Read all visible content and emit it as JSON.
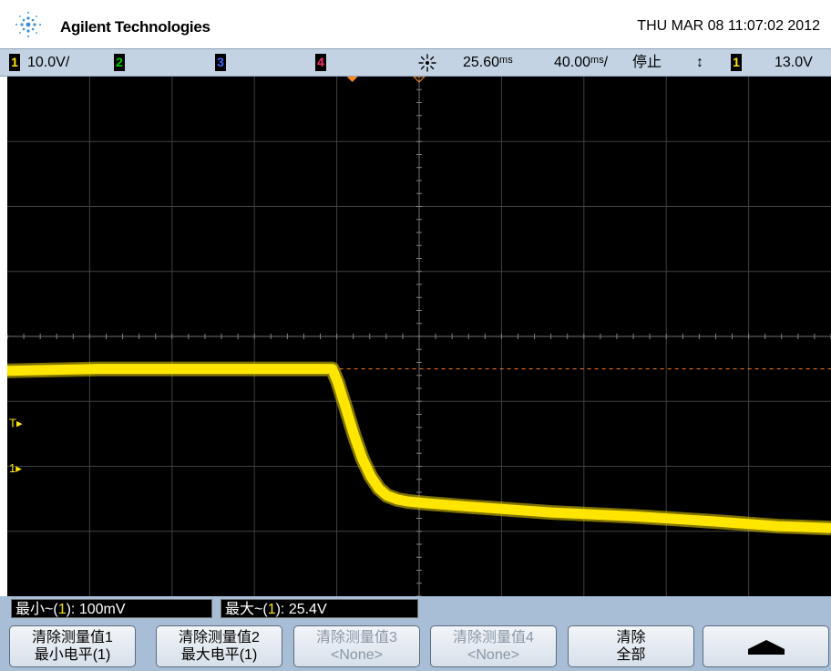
{
  "header": {
    "brand": "Agilent Technologies",
    "datetime": "THU MAR 08 11:07:02 2012",
    "logo_icon": "agilent-spark-icon"
  },
  "status": {
    "ch1_num": "1",
    "ch1_scale": "10.0V/",
    "ch2_num": "2",
    "ch3_num": "3",
    "ch4_num": "4",
    "trigger_icon": "trigger-sun-icon",
    "delay": "25.60ᵐˢ",
    "timebase": "40.00ᵐˢ/",
    "run_state": "停止",
    "trigger_mode_icon": "trigger-edge-icon",
    "trig_src": "1",
    "trig_level": "13.0V",
    "colors": {
      "ch1": "#ffe600",
      "ch2": "#00d000",
      "ch3": "#3a66ff",
      "ch4": "#ff2e6e"
    }
  },
  "screen": {
    "trig_marker_label": "T",
    "ch1_ground_label": "1",
    "trace_color": "#ffe600",
    "trigger_level_line_color": "#ff7a1a"
  },
  "chart_data": {
    "type": "line",
    "title": "",
    "xlabel": "",
    "ylabel": "",
    "x_unit": "ms",
    "y_unit": "V",
    "xlim": [
      -174.4,
      225.6
    ],
    "ylim": [
      -10,
      70
    ],
    "grid": true,
    "series": [
      {
        "x": [
          -174.4,
          -130,
          -90,
          -50,
          -16.6,
          -14,
          -10,
          -6,
          -2,
          2,
          6,
          10,
          15,
          20,
          30,
          50,
          90,
          130,
          170,
          200,
          225.6
        ],
        "y": [
          24.7,
          25.0,
          25.0,
          25.0,
          25.0,
          23.0,
          19.0,
          14.8,
          11.2,
          8.5,
          6.6,
          5.5,
          4.9,
          4.6,
          4.3,
          3.8,
          2.9,
          2.3,
          1.5,
          0.8,
          0.5
        ]
      }
    ]
  },
  "measurements": {
    "min_prefix": "最小~(",
    "min_ch": "1",
    "min_suffix": "): 100mV",
    "max_prefix": "最大~(",
    "max_ch": "1",
    "max_suffix": "): 25.4V"
  },
  "softkeys": {
    "k1_l1": "清除测量值1",
    "k1_l2": "最小电平(1)",
    "k2_l1": "清除测量值2",
    "k2_l2": "最大电平(1)",
    "k3_l1": "清除测量值3",
    "k3_l2": "<None>",
    "k4_l1": "清除测量值4",
    "k4_l2": "<None>",
    "k5_l1": "清除",
    "k5_l2": "全部",
    "k6_icon": "up-arrow-icon"
  }
}
